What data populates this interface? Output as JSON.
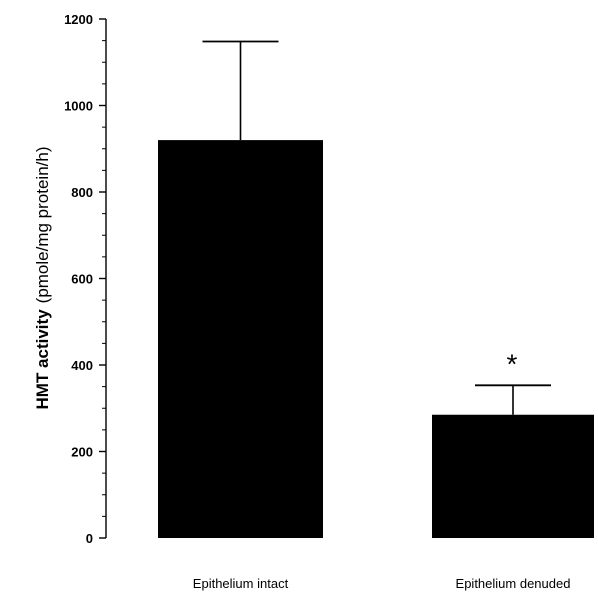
{
  "chart_data": {
    "type": "bar",
    "title": "",
    "xlabel": "",
    "ylabel": {
      "bold_part": "HMT activity",
      "normal_part": "(pmole/mg protein/h)"
    },
    "ylim": [
      0,
      1200
    ],
    "yticks": [
      0,
      200,
      400,
      600,
      800,
      1000,
      1200
    ],
    "categories": [
      "Epithelium intact",
      "Epithelium denuded"
    ],
    "values": [
      920,
      285
    ],
    "errors_upper": [
      1148,
      353
    ],
    "annotations": [
      "",
      "*"
    ],
    "bar_color": "#000000",
    "grid": false,
    "legend": "none"
  }
}
